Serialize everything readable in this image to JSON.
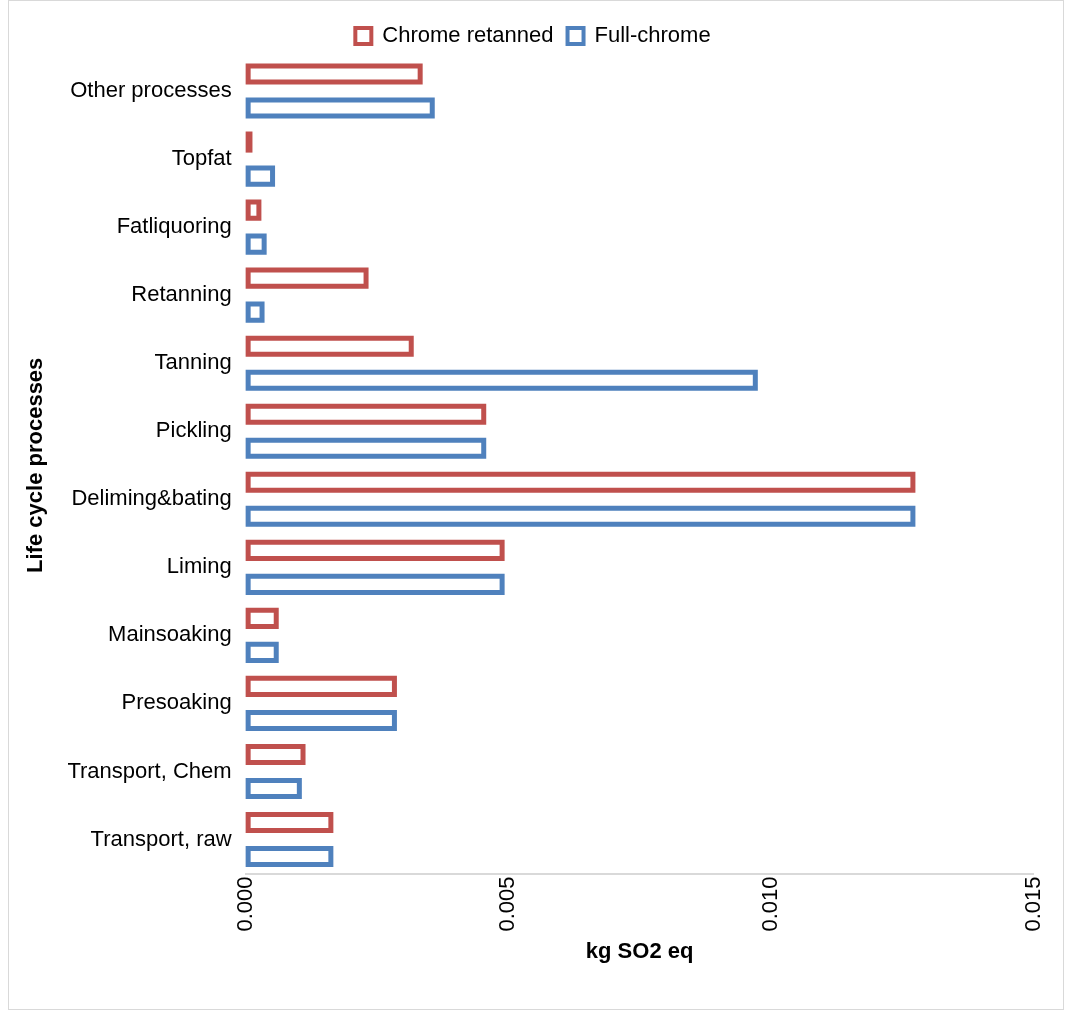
{
  "chart_data": {
    "type": "bar",
    "orientation": "horizontal",
    "xlabel": "kg SO2 eq",
    "ylabel": "Life cycle processes",
    "categories": [
      "Other processes",
      "Topfat",
      "Fatliquoring",
      "Retanning",
      "Tanning",
      "Pickling",
      "Deliming&bating",
      "Liming",
      "Mainsoaking",
      "Presoaking",
      "Transport, Chem",
      "Transport, raw"
    ],
    "series": [
      {
        "name": "Chrome retanned",
        "color": "#c0504d",
        "values": [
          0.00337,
          0.00013,
          0.0003,
          0.00234,
          0.0032,
          0.00458,
          0.01275,
          0.00493,
          0.00063,
          0.00288,
          0.00114,
          0.00167
        ]
      },
      {
        "name": "Full-chrome",
        "color": "#4f81bd",
        "values": [
          0.0036,
          0.00056,
          0.0004,
          0.00036,
          0.00975,
          0.00458,
          0.01275,
          0.00493,
          0.00063,
          0.00288,
          0.00107,
          0.00167
        ]
      }
    ],
    "xlim": [
      0,
      0.015
    ],
    "xticks": [
      {
        "value": 0,
        "label": "0.000"
      },
      {
        "value": 0.005,
        "label": "0.005"
      },
      {
        "value": 0.01,
        "label": "0.010"
      },
      {
        "value": 0.015,
        "label": "0.015"
      }
    ],
    "grid": false,
    "legend": "top"
  }
}
